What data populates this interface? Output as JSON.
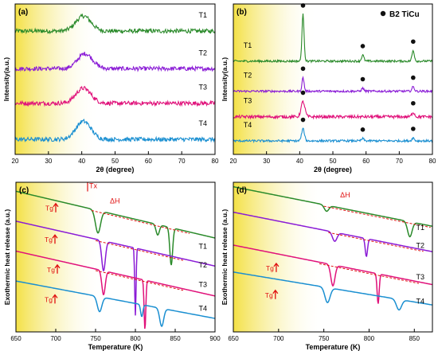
{
  "colors": {
    "green": "#2a8a2a",
    "purple": "#8a1bd6",
    "magenta": "#e0117a",
    "blue": "#1a8fd1",
    "annotation_red": "#e01010",
    "fade_yellow": "#f3df3c"
  },
  "chart_data": [
    {
      "panel": "(a)",
      "type": "line",
      "xlabel": "2θ (degree)",
      "ylabel": "Intensity(a.u.)",
      "xlim": [
        20,
        80
      ],
      "xticks": [
        "20",
        "30",
        "40",
        "50",
        "60",
        "70",
        "80"
      ],
      "description_hint": "",
      "series": [
        {
          "name": "T1",
          "color": "green",
          "baseline": 0.82,
          "features": [
            {
              "center": 40.5,
              "width": 3.2,
              "height": 0.1
            }
          ],
          "noise": 0.014
        },
        {
          "name": "T2",
          "color": "purple",
          "baseline": 0.57,
          "features": [
            {
              "center": 41,
              "width": 3.2,
              "height": 0.1
            }
          ],
          "noise": 0.014
        },
        {
          "name": "T3",
          "color": "magenta",
          "baseline": 0.34,
          "features": [
            {
              "center": 40.5,
              "width": 3.2,
              "height": 0.1
            }
          ],
          "noise": 0.014
        },
        {
          "name": "T4",
          "color": "blue",
          "baseline": 0.1,
          "features": [
            {
              "center": 40.5,
              "width": 3.2,
              "height": 0.12
            }
          ],
          "noise": 0.014
        }
      ]
    },
    {
      "panel": "(b)",
      "type": "line",
      "xlabel": "2θ (degree)",
      "ylabel": "Intensity(a.u.)",
      "xlim": [
        20,
        80
      ],
      "xticks": [
        "20",
        "30",
        "40",
        "50",
        "60",
        "70",
        "80"
      ],
      "legend": {
        "label": "B2 TiCu",
        "marker": "filled-circle",
        "position": "top-right"
      },
      "marker_positions_2theta": [
        41,
        59,
        74
      ],
      "series": [
        {
          "name": "T1",
          "color": "green",
          "baseline": 0.62,
          "features": [
            {
              "center": 41,
              "width": 0.45,
              "height": 0.31
            },
            {
              "center": 59,
              "width": 0.5,
              "height": 0.04
            },
            {
              "center": 74.2,
              "width": 0.5,
              "height": 0.07
            }
          ],
          "noise": 0.007
        },
        {
          "name": "T2",
          "color": "purple",
          "baseline": 0.42,
          "features": [
            {
              "center": 41,
              "width": 0.45,
              "height": 0.09
            },
            {
              "center": 59,
              "width": 0.5,
              "height": 0.02
            },
            {
              "center": 74.2,
              "width": 0.5,
              "height": 0.03
            }
          ],
          "noise": 0.007
        },
        {
          "name": "T3",
          "color": "magenta",
          "baseline": 0.25,
          "features": [
            {
              "center": 41,
              "width": 0.8,
              "height": 0.1
            },
            {
              "center": 74.2,
              "width": 0.6,
              "height": 0.03
            }
          ],
          "noise": 0.01
        },
        {
          "name": "T4",
          "color": "blue",
          "baseline": 0.09,
          "features": [
            {
              "center": 41,
              "width": 0.6,
              "height": 0.08
            },
            {
              "center": 59,
              "width": 0.5,
              "height": 0.015
            },
            {
              "center": 74.2,
              "width": 0.5,
              "height": 0.02
            }
          ],
          "noise": 0.007
        }
      ]
    },
    {
      "panel": "(c)",
      "type": "line",
      "xlabel": "Temperature (K)",
      "ylabel": "Exothermic heat release (a.u.)",
      "xlim": [
        650,
        900
      ],
      "xticks": [
        "650",
        "700",
        "750",
        "800",
        "850",
        "900"
      ],
      "annotations": [
        {
          "text": "Tx",
          "x": 742,
          "y": 0.96
        },
        {
          "text": "ΔH",
          "x": 768,
          "y": 0.86
        }
      ],
      "tg_labels": [
        {
          "text": "Tg",
          "x": 687,
          "y": 0.81
        },
        {
          "text": "Tg",
          "x": 686,
          "y": 0.6
        },
        {
          "text": "Tg",
          "x": 689,
          "y": 0.4
        },
        {
          "text": "Tg",
          "x": 686,
          "y": 0.2
        }
      ],
      "series": [
        {
          "name": "T1",
          "color": "green",
          "y0": 0.94,
          "slope": -0.00125,
          "features": [
            {
              "center": 753,
              "width": 4.5,
              "depth": 0.15
            },
            {
              "center": 828,
              "width": 3,
              "depth": 0.07
            },
            {
              "center": 845,
              "width": 2.5,
              "depth": 0.25
            }
          ],
          "label_y": 0.555,
          "ref_line": {
            "x1": 745,
            "x2": 868
          }
        },
        {
          "name": "T2",
          "color": "purple",
          "y0": 0.74,
          "slope": -0.0012,
          "features": [
            {
              "center": 760,
              "width": 3.2,
              "depth": 0.2
            },
            {
              "center": 800,
              "width": 1.2,
              "depth": 0.45
            }
          ],
          "label_y": 0.43,
          "ref_line": {
            "x1": 750,
            "x2": 860
          }
        },
        {
          "name": "T3",
          "color": "magenta",
          "y0": 0.54,
          "slope": -0.0012,
          "features": [
            {
              "center": 760,
              "width": 3,
              "depth": 0.16
            },
            {
              "center": 812,
              "width": 1.5,
              "depth": 0.33
            }
          ],
          "label_y": 0.3,
          "ref_line": {
            "x1": 750,
            "x2": 860
          }
        },
        {
          "name": "T4",
          "color": "blue",
          "y0": 0.34,
          "slope": -0.001,
          "features": [
            {
              "center": 755,
              "width": 4,
              "depth": 0.1
            },
            {
              "center": 808,
              "width": 2,
              "depth": 0.08
            },
            {
              "center": 833,
              "width": 3.5,
              "depth": 0.12
            }
          ],
          "label_y": 0.14
        }
      ]
    },
    {
      "panel": "(d)",
      "type": "line",
      "xlabel": "Temperature (K)",
      "ylabel": "Exothermic heat release (a.u.)",
      "xlim": [
        650,
        870
      ],
      "xticks": [
        "650",
        "700",
        "750",
        "800",
        "850"
      ],
      "annotations": [
        {
          "text": "ΔH",
          "x": 768,
          "y": 0.9
        }
      ],
      "tg_labels": [
        {
          "text": "Tg",
          "x": 686,
          "y": 0.41
        },
        {
          "text": "Tg",
          "x": 685,
          "y": 0.23
        }
      ],
      "series": [
        {
          "name": "T1",
          "color": "green",
          "y0": 0.97,
          "slope": -0.0012,
          "features": [
            {
              "center": 753,
              "width": 3.5,
              "depth": 0.04
            },
            {
              "center": 845,
              "width": 3.5,
              "depth": 0.1
            }
          ],
          "label_y": 0.68,
          "ref_line": {
            "x1": 750,
            "x2": 868
          }
        },
        {
          "name": "T2",
          "color": "purple",
          "y0": 0.8,
          "slope": -0.0012,
          "features": [
            {
              "center": 762,
              "width": 3.5,
              "depth": 0.06
            },
            {
              "center": 797,
              "width": 1.8,
              "depth": 0.12
            }
          ],
          "label_y": 0.56,
          "ref_line": {
            "x1": 755,
            "x2": 860
          }
        },
        {
          "name": "T3",
          "color": "magenta",
          "y0": 0.58,
          "slope": -0.0012,
          "features": [
            {
              "center": 760,
              "width": 3.2,
              "depth": 0.14
            },
            {
              "center": 810,
              "width": 1.6,
              "depth": 0.2
            }
          ],
          "label_y": 0.35,
          "ref_line": {
            "x1": 745,
            "x2": 855
          }
        },
        {
          "name": "T4",
          "color": "blue",
          "y0": 0.4,
          "slope": -0.001,
          "features": [
            {
              "center": 754,
              "width": 4,
              "depth": 0.1
            },
            {
              "center": 833,
              "width": 4,
              "depth": 0.07
            }
          ],
          "label_y": 0.19
        }
      ]
    }
  ]
}
